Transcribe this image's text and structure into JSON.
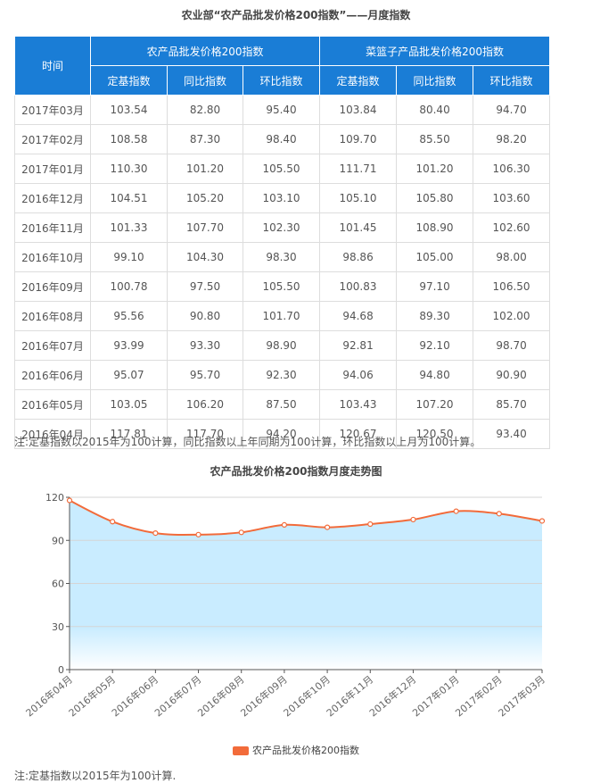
{
  "title": "农业部“农产品批发价格200指数”——月度指数",
  "table": {
    "time_header": "时间",
    "group1": "农产品批发价格200指数",
    "group2": "菜篮子产品批发价格200指数",
    "sub_headers": [
      "定基指数",
      "同比指数",
      "环比指数",
      "定基指数",
      "同比指数",
      "环比指数"
    ],
    "rows": [
      [
        "2017年03月",
        "103.54",
        "82.80",
        "95.40",
        "103.84",
        "80.40",
        "94.70"
      ],
      [
        "2017年02月",
        "108.58",
        "87.30",
        "98.40",
        "109.70",
        "85.50",
        "98.20"
      ],
      [
        "2017年01月",
        "110.30",
        "101.20",
        "105.50",
        "111.71",
        "101.20",
        "106.30"
      ],
      [
        "2016年12月",
        "104.51",
        "105.20",
        "103.10",
        "105.10",
        "105.80",
        "103.60"
      ],
      [
        "2016年11月",
        "101.33",
        "107.70",
        "102.30",
        "101.45",
        "108.90",
        "102.60"
      ],
      [
        "2016年10月",
        "99.10",
        "104.30",
        "98.30",
        "98.86",
        "105.00",
        "98.00"
      ],
      [
        "2016年09月",
        "100.78",
        "97.50",
        "105.50",
        "100.83",
        "97.10",
        "106.50"
      ],
      [
        "2016年08月",
        "95.56",
        "90.80",
        "101.70",
        "94.68",
        "89.30",
        "102.00"
      ],
      [
        "2016年07月",
        "93.99",
        "93.30",
        "98.90",
        "92.81",
        "92.10",
        "98.70"
      ],
      [
        "2016年06月",
        "95.07",
        "95.70",
        "92.30",
        "94.06",
        "94.80",
        "90.90"
      ],
      [
        "2016年05月",
        "103.05",
        "106.20",
        "87.50",
        "103.43",
        "107.20",
        "85.70"
      ],
      [
        "2016年04月",
        "117.81",
        "117.70",
        "94.20",
        "120.67",
        "120.50",
        "93.40"
      ]
    ]
  },
  "note1": "注:定基指数以2015年为100计算，同比指数以上年同期为100计算，环比指数以上月为100计算。",
  "chart_data": {
    "type": "area",
    "title": "农产品批发价格200指数月度走势图",
    "categories": [
      "2016年04月",
      "2016年05月",
      "2016年06月",
      "2016年07月",
      "2016年08月",
      "2016年09月",
      "2016年10月",
      "2016年11月",
      "2016年12月",
      "2017年01月",
      "2017年02月",
      "2017年03月"
    ],
    "series": [
      {
        "name": "农产品批发价格200指数",
        "values": [
          117.81,
          103.05,
          95.07,
          93.99,
          95.56,
          100.78,
          99.1,
          101.33,
          104.51,
          110.3,
          108.58,
          103.54
        ]
      }
    ],
    "yticks": [
      "0",
      "30",
      "60",
      "90",
      "120"
    ],
    "ylim": [
      0,
      120
    ],
    "grid": true,
    "legend_position": "bottom",
    "colors": {
      "line": "#f26b3a",
      "area_top": "#c9ecff",
      "area_bottom": "#ffffff",
      "header_bg": "#1a7dd6"
    }
  },
  "note2": "注:定基指数以2015年为100计算."
}
